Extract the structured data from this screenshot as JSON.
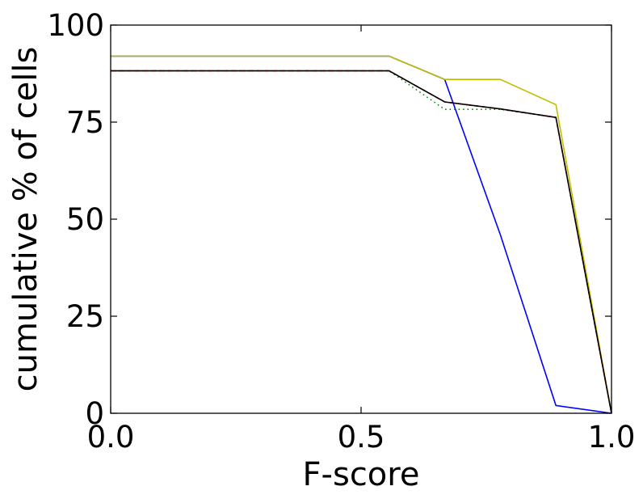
{
  "chart_data": {
    "type": "line",
    "xlabel": "F-score",
    "ylabel": "cumulative % of cells",
    "xlim": [
      0.0,
      1.0
    ],
    "ylim": [
      0,
      100
    ],
    "x_ticks": [
      "0.0",
      "0.5",
      "1.0"
    ],
    "y_ticks": [
      "0",
      "25",
      "50",
      "75",
      "100"
    ],
    "grid": false,
    "series": [
      {
        "color": "#0000ff",
        "style": "solid",
        "points": [
          [
            0.0,
            92
          ],
          [
            0.556,
            92
          ],
          [
            0.667,
            86
          ],
          [
            0.778,
            46
          ],
          [
            0.889,
            2
          ],
          [
            1.0,
            0
          ]
        ]
      },
      {
        "color": "#bfbf00",
        "style": "solid",
        "points": [
          [
            0.0,
            92
          ],
          [
            0.556,
            92
          ],
          [
            0.667,
            86
          ],
          [
            0.778,
            86
          ],
          [
            0.889,
            79.5
          ],
          [
            1.0,
            0
          ]
        ]
      },
      {
        "color": "#008000",
        "style": "dotted",
        "points": [
          [
            0.0,
            88.2
          ],
          [
            0.556,
            88.2
          ],
          [
            0.667,
            78.3
          ],
          [
            0.778,
            78.3
          ],
          [
            0.889,
            76.2
          ],
          [
            1.0,
            0
          ]
        ]
      },
      {
        "color": "#ff0000",
        "style": "dashed",
        "points": [
          [
            0.0,
            88.2
          ],
          [
            0.556,
            88.2
          ],
          [
            0.667,
            80.2
          ],
          [
            0.778,
            78.4
          ],
          [
            0.889,
            76.2
          ],
          [
            1.0,
            0
          ]
        ]
      },
      {
        "color": "#000000",
        "style": "solid",
        "points": [
          [
            0.0,
            88.2
          ],
          [
            0.556,
            88.2
          ],
          [
            0.667,
            80.2
          ],
          [
            0.778,
            78.4
          ],
          [
            0.889,
            76.2
          ],
          [
            1.0,
            0
          ]
        ]
      }
    ]
  }
}
